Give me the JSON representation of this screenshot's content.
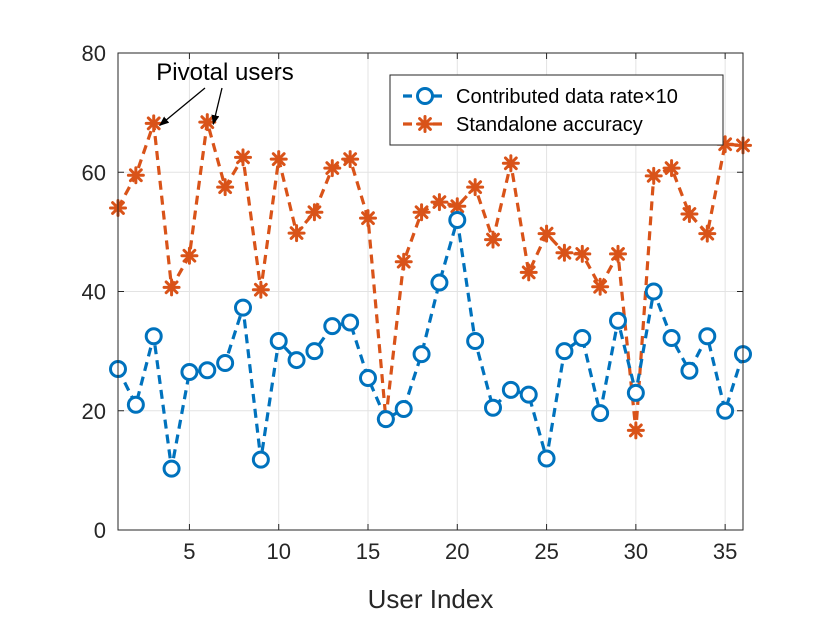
{
  "chart_data": {
    "type": "line",
    "title": "",
    "xlabel": "User Index",
    "ylabel": "",
    "xlim": [
      1,
      36
    ],
    "ylim": [
      0,
      80
    ],
    "xticks": [
      5,
      10,
      15,
      20,
      25,
      30,
      35
    ],
    "yticks": [
      0,
      20,
      40,
      60,
      80
    ],
    "grid": true,
    "legend_position": "top-right",
    "x": [
      1,
      2,
      3,
      4,
      5,
      6,
      7,
      8,
      9,
      10,
      11,
      12,
      13,
      14,
      15,
      16,
      17,
      18,
      19,
      20,
      21,
      22,
      23,
      24,
      25,
      26,
      27,
      28,
      29,
      30,
      31,
      32,
      33,
      34,
      35,
      36
    ],
    "series": [
      {
        "name": "Contributed data rate×10",
        "color": "#0072BD",
        "marker": "circle",
        "values": [
          27,
          21,
          32.5,
          10.3,
          26.5,
          26.8,
          28,
          37.3,
          11.8,
          31.7,
          28.5,
          30,
          34.2,
          34.8,
          25.5,
          18.6,
          20.3,
          29.5,
          41.5,
          52,
          31.7,
          20.5,
          23.5,
          22.7,
          12,
          30,
          32.2,
          19.6,
          35.1,
          23,
          40,
          32.2,
          26.7,
          32.5,
          20,
          29.5
        ]
      },
      {
        "name": "Standalone accuracy",
        "color": "#D95319",
        "marker": "asterisk",
        "values": [
          54,
          59.5,
          68.2,
          40.7,
          46,
          68.4,
          57.5,
          62.5,
          40.3,
          62.2,
          49.8,
          53.3,
          60.7,
          62.2,
          52.3,
          18.6,
          45,
          53.3,
          55,
          54.3,
          57.5,
          48.7,
          61.5,
          43.2,
          49.7,
          46.5,
          46.3,
          40.8,
          46.3,
          16.7,
          59.4,
          60.7,
          53,
          49.7,
          64.7,
          64.5
        ]
      }
    ],
    "annotations": [
      {
        "text": "Pivotal users",
        "targets": [
          3,
          6
        ]
      }
    ]
  }
}
